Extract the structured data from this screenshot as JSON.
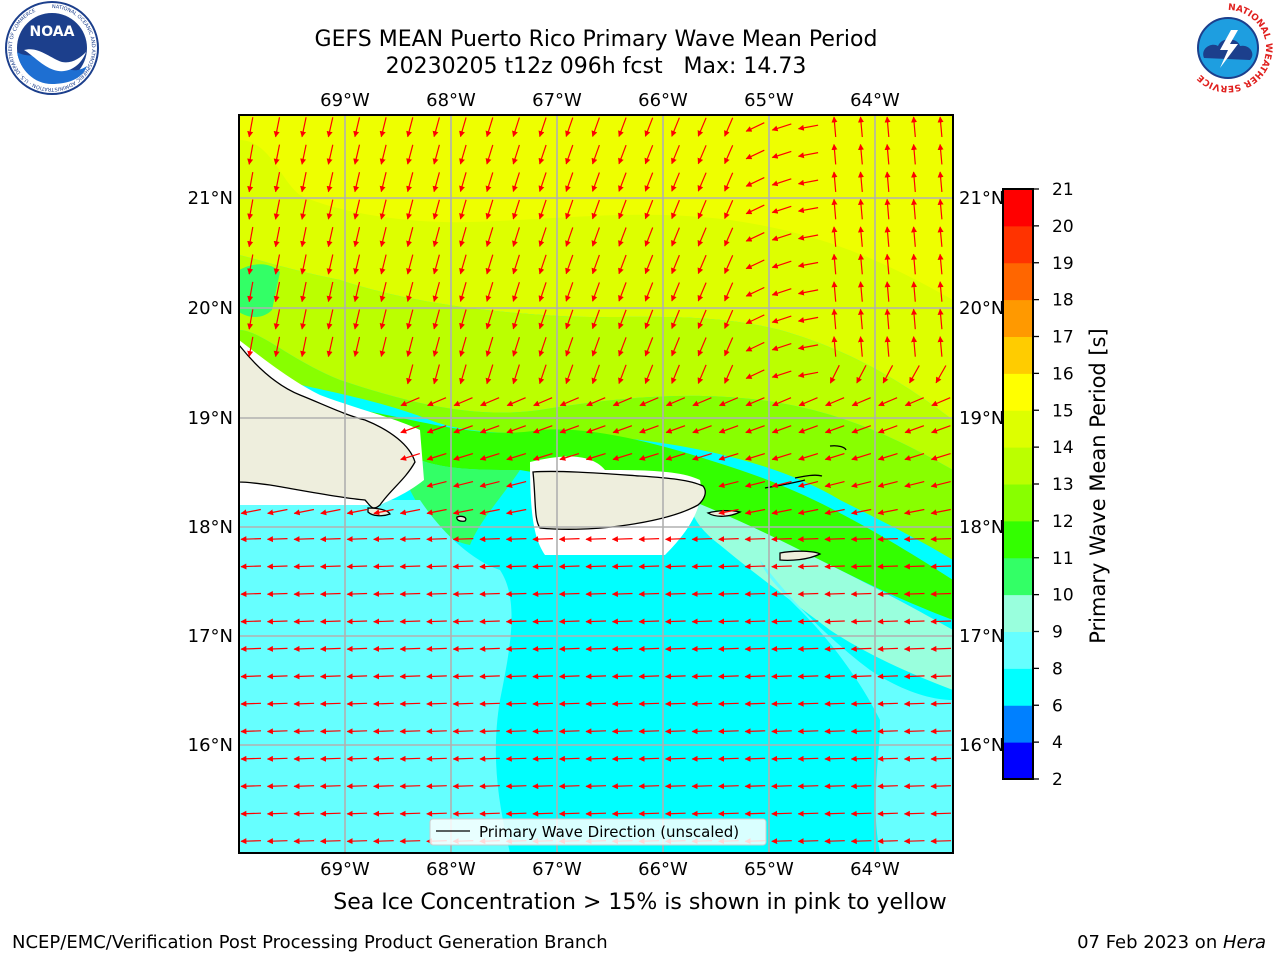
{
  "title": {
    "line1": "GEFS MEAN Puerto Rico Primary Wave Mean Period",
    "line2": "20230205 t12z 096h fcst   Max: 14.73"
  },
  "logos": {
    "left": {
      "icon": "noaa-logo-icon",
      "text": "NOAA",
      "ring_text": "NATIONAL OCEANIC AND ATMOSPHERIC ADMINISTRATION · U.S. DEPARTMENT OF COMMERCE"
    },
    "right": {
      "icon": "nws-logo-icon",
      "ring_text": "NATIONAL WEATHER SERVICE"
    }
  },
  "map": {
    "lon_labels": [
      "69°W",
      "68°W",
      "67°W",
      "66°W",
      "65°W",
      "64°W"
    ],
    "lat_labels": [
      "21°N",
      "20°N",
      "19°N",
      "18°N",
      "17°N",
      "16°N"
    ],
    "legend_label": "Primary Wave Direction (unscaled)",
    "arrow_color": "#ff0000",
    "land_color": "#eeeedd"
  },
  "colorbar": {
    "title": "Primary Wave Mean Period [s]",
    "ticks": [
      "21",
      "20",
      "19",
      "18",
      "17",
      "16",
      "15",
      "14",
      "13",
      "12",
      "11",
      "10",
      "9",
      "8",
      "6",
      "4",
      "2"
    ],
    "colors": [
      "#0000ff",
      "#0080ff",
      "#00ffff",
      "#66ffff",
      "#99ffdd",
      "#33ff66",
      "#33ff00",
      "#88ff00",
      "#bbff00",
      "#ddff00",
      "#ffff00",
      "#ffcc00",
      "#ff9900",
      "#ff6600",
      "#ff3300",
      "#ff0000"
    ]
  },
  "subtitle": "Sea Ice Concentration > 15% is shown in pink to yellow",
  "footer": {
    "left": "NCEP/EMC/Verification Post Processing Product Generation Branch",
    "right_prefix": "07 Feb 2023 on ",
    "right_host": "Hera"
  }
}
